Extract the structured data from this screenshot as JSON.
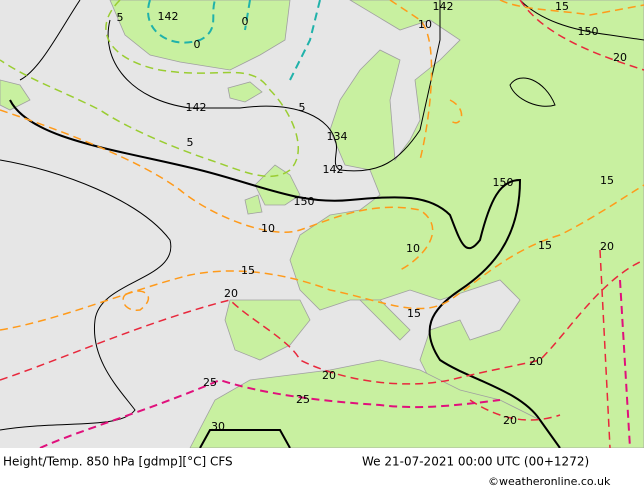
{
  "footer": {
    "title": "Height/Temp. 850 hPa [gdmp][°C] CFS",
    "datetime": "We 21-07-2021 00:00 UTC (00+1272)",
    "credit": "©weatheronline.co.uk"
  },
  "contour_labels": [
    "142",
    "5",
    "0",
    "0",
    "142",
    "10",
    "15",
    "150",
    "20",
    "142",
    "5",
    "134",
    "5",
    "142",
    "150",
    "150",
    "15",
    "10",
    "10",
    "15",
    "20",
    "15",
    "20",
    "15",
    "20",
    "20",
    "25",
    "25",
    "20",
    "30"
  ]
}
